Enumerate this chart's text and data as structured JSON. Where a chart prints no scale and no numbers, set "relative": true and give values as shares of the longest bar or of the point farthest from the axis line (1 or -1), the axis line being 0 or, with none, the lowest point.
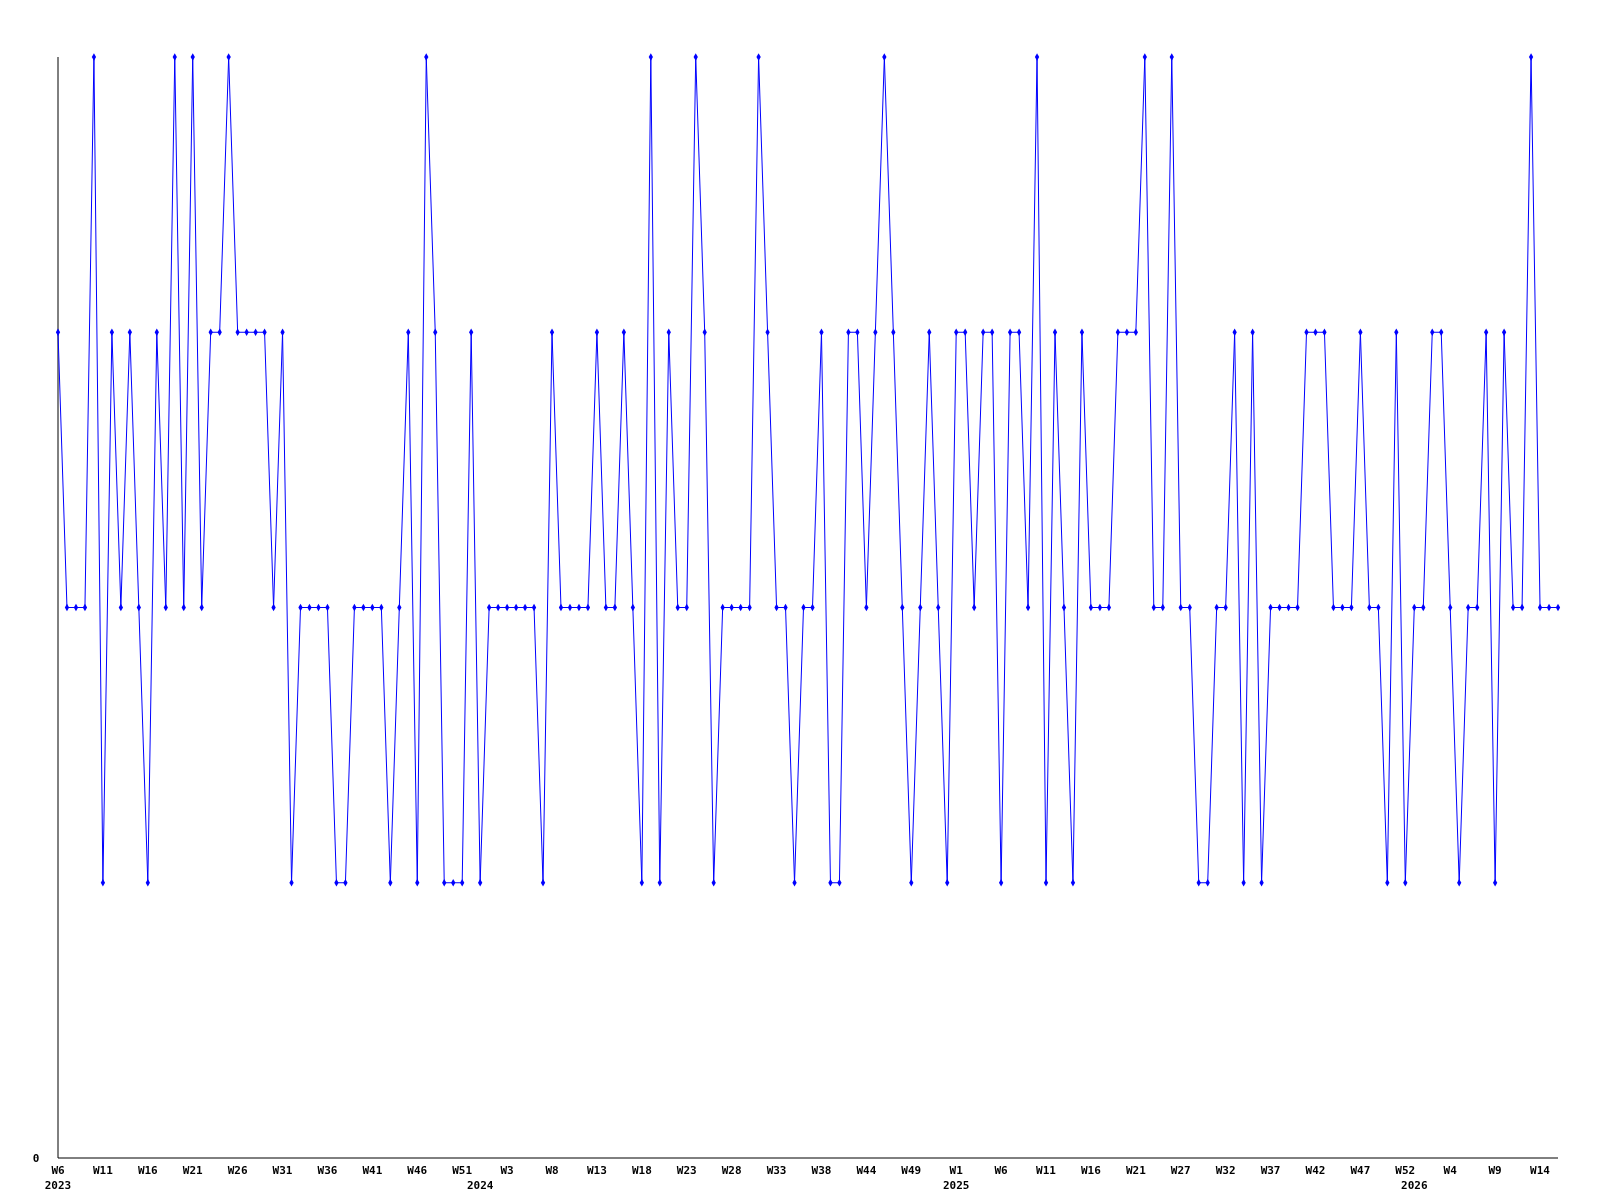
{
  "chart_data": {
    "type": "line",
    "relative": true,
    "color": "#0000ff",
    "marker": "diamond",
    "line_style": "solid",
    "annotations": [
      "0"
    ],
    "categories": [
      "W6\n2023",
      null,
      null,
      null,
      null,
      "W11",
      null,
      null,
      null,
      null,
      "W16",
      null,
      null,
      null,
      null,
      "W21",
      null,
      null,
      null,
      null,
      "W26",
      null,
      null,
      null,
      null,
      "W31",
      null,
      null,
      null,
      null,
      "W36",
      null,
      null,
      null,
      null,
      "W41",
      null,
      null,
      null,
      null,
      "W46",
      null,
      null,
      null,
      null,
      "W51",
      null,
      "\n2024",
      null,
      null,
      "W3",
      null,
      null,
      null,
      null,
      "W8",
      null,
      null,
      null,
      null,
      "W13",
      null,
      null,
      null,
      null,
      "W18",
      null,
      null,
      null,
      null,
      "W23",
      null,
      null,
      null,
      null,
      "W28",
      null,
      null,
      null,
      null,
      "W33",
      null,
      null,
      null,
      null,
      "W38",
      null,
      null,
      null,
      null,
      "W44",
      null,
      null,
      null,
      null,
      "W49",
      null,
      null,
      null,
      null,
      "W1\n2025",
      null,
      null,
      null,
      null,
      "W6",
      null,
      null,
      null,
      null,
      "W11",
      null,
      null,
      null,
      null,
      "W16",
      null,
      null,
      null,
      null,
      "W21",
      null,
      null,
      null,
      null,
      "W27",
      null,
      null,
      null,
      null,
      "W32",
      null,
      null,
      null,
      null,
      "W37",
      null,
      null,
      null,
      null,
      "W42",
      null,
      null,
      null,
      null,
      "W47",
      null,
      null,
      null,
      null,
      "W52",
      "\n2026",
      null,
      null,
      null,
      "W4",
      null,
      null,
      null,
      null,
      "W9",
      null,
      null,
      null,
      null,
      "W14",
      null,
      null
    ],
    "values": [
      0.75,
      0.5,
      0.5,
      0.5,
      1,
      0.25,
      0.75,
      0.5,
      0.75,
      0.5,
      0.25,
      0.75,
      0.5,
      1,
      0.5,
      1,
      0.5,
      0.75,
      0.75,
      1,
      0.75,
      0.75,
      0.75,
      0.75,
      0.5,
      0.75,
      0.25,
      0.5,
      0.5,
      0.5,
      0.5,
      0.25,
      0.25,
      0.5,
      0.5,
      0.5,
      0.5,
      0.25,
      0.5,
      0.75,
      0.25,
      1,
      0.75,
      0.25,
      0.25,
      0.25,
      0.75,
      0.25,
      0.5,
      0.5,
      0.5,
      0.5,
      0.5,
      0.5,
      0.25,
      0.75,
      0.5,
      0.5,
      0.5,
      0.5,
      0.75,
      0.5,
      0.5,
      0.75,
      0.5,
      0.25,
      1,
      0.25,
      0.75,
      0.5,
      0.5,
      1,
      0.75,
      0.25,
      0.5,
      0.5,
      0.5,
      0.5,
      1,
      0.75,
      0.5,
      0.5,
      0.25,
      0.5,
      0.5,
      0.75,
      0.25,
      0.25,
      0.75,
      0.75,
      0.5,
      0.75,
      1,
      0.75,
      0.5,
      0.25,
      0.5,
      0.75,
      0.5,
      0.25,
      0.75,
      0.75,
      0.5,
      0.75,
      0.75,
      0.25,
      0.75,
      0.75,
      0.5,
      1,
      0.25,
      0.75,
      0.5,
      0.25,
      0.75,
      0.5,
      0.5,
      0.5,
      0.75,
      0.75,
      0.75,
      1,
      0.5,
      0.5,
      1,
      0.5,
      0.5,
      0.25,
      0.25,
      0.5,
      0.5,
      0.75,
      0.25,
      0.75,
      0.25,
      0.5,
      0.5,
      0.5,
      0.5,
      0.75,
      0.75,
      0.75,
      0.5,
      0.5,
      0.5,
      0.75,
      0.5,
      0.5,
      0.25,
      0.75,
      0.25,
      0.5,
      0.5,
      0.75,
      0.75,
      0.5,
      0.25,
      0.5,
      0.5,
      0.75,
      0.25,
      0.75,
      0.5,
      0.5,
      1,
      0.5,
      0.5,
      0.5
    ]
  }
}
